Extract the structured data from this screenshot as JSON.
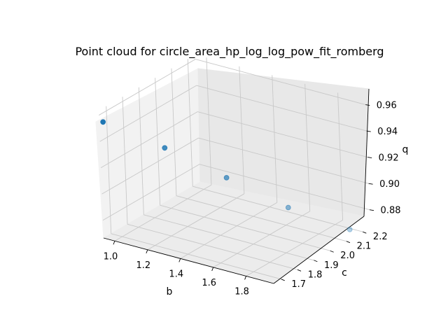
{
  "chart_data": {
    "type": "scatter",
    "projection": "3d",
    "title": "Point cloud for circle_area_hp_log_log_pow_fit_romberg",
    "xlabel": "b",
    "ylabel": "c",
    "zlabel": "q",
    "xticks": [
      "1.0",
      "1.2",
      "1.4",
      "1.6",
      "1.8"
    ],
    "yticks": [
      "1.7",
      "1.8",
      "1.9",
      "2.0",
      "2.1",
      "2.2"
    ],
    "zticks": [
      "0.88",
      "0.90",
      "0.92",
      "0.94",
      "0.96"
    ],
    "grid": true,
    "marker_color": "#1f77b4",
    "points": [
      {
        "b": 0.95,
        "c": 1.66,
        "q": 0.955
      },
      {
        "b": 1.2,
        "c": 1.78,
        "q": 0.935
      },
      {
        "b": 1.45,
        "c": 1.9,
        "q": 0.912
      },
      {
        "b": 1.7,
        "c": 2.02,
        "q": 0.889
      },
      {
        "b": 1.95,
        "c": 2.14,
        "q": 0.872
      }
    ]
  }
}
